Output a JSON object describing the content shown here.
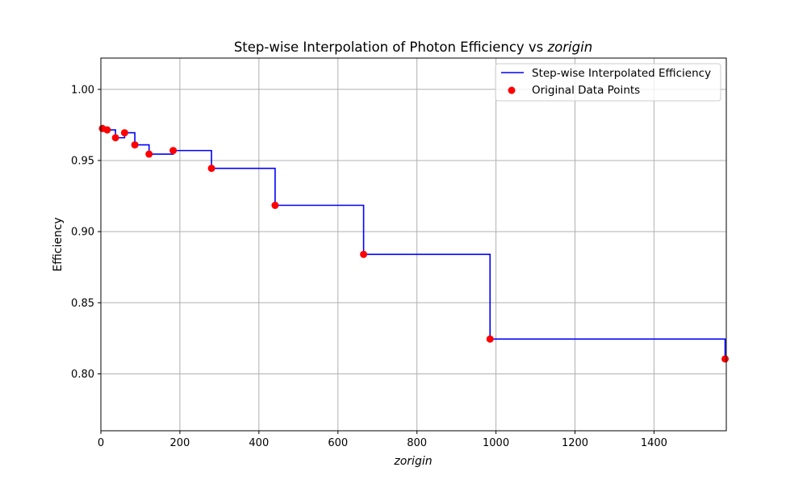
{
  "chart_data": {
    "type": "line",
    "title": {
      "prefix": "Step-wise Interpolation of Photon Efficiency vs ",
      "variable": "zorigin"
    },
    "xlabel": "zorigin",
    "ylabel": "Efficiency",
    "xlim": [
      0,
      1583
    ],
    "ylim": [
      0.76,
      1.022
    ],
    "xticks": [
      0,
      200,
      400,
      600,
      800,
      1000,
      1200,
      1400
    ],
    "yticks": [
      0.8,
      0.85,
      0.9,
      0.95,
      1.0
    ],
    "xtick_labels": [
      "0",
      "200",
      "400",
      "600",
      "800",
      "1000",
      "1200",
      "1400"
    ],
    "ytick_labels": [
      "0.80",
      "0.85",
      "0.90",
      "0.95",
      "1.00"
    ],
    "grid": true,
    "legend_position": "top-right",
    "series": [
      {
        "name": "Step-wise Interpolated Efficiency",
        "kind": "step-post",
        "color": "#0000ff"
      },
      {
        "name": "Original Data Points",
        "kind": "scatter",
        "color": "#ff0000"
      }
    ],
    "x": [
      4,
      16,
      37,
      60,
      86,
      122,
      183,
      280,
      441,
      665,
      985,
      1580
    ],
    "y": [
      0.9725,
      0.9715,
      0.966,
      0.9695,
      0.961,
      0.9545,
      0.957,
      0.9445,
      0.9185,
      0.884,
      0.8245,
      0.8105
    ]
  }
}
